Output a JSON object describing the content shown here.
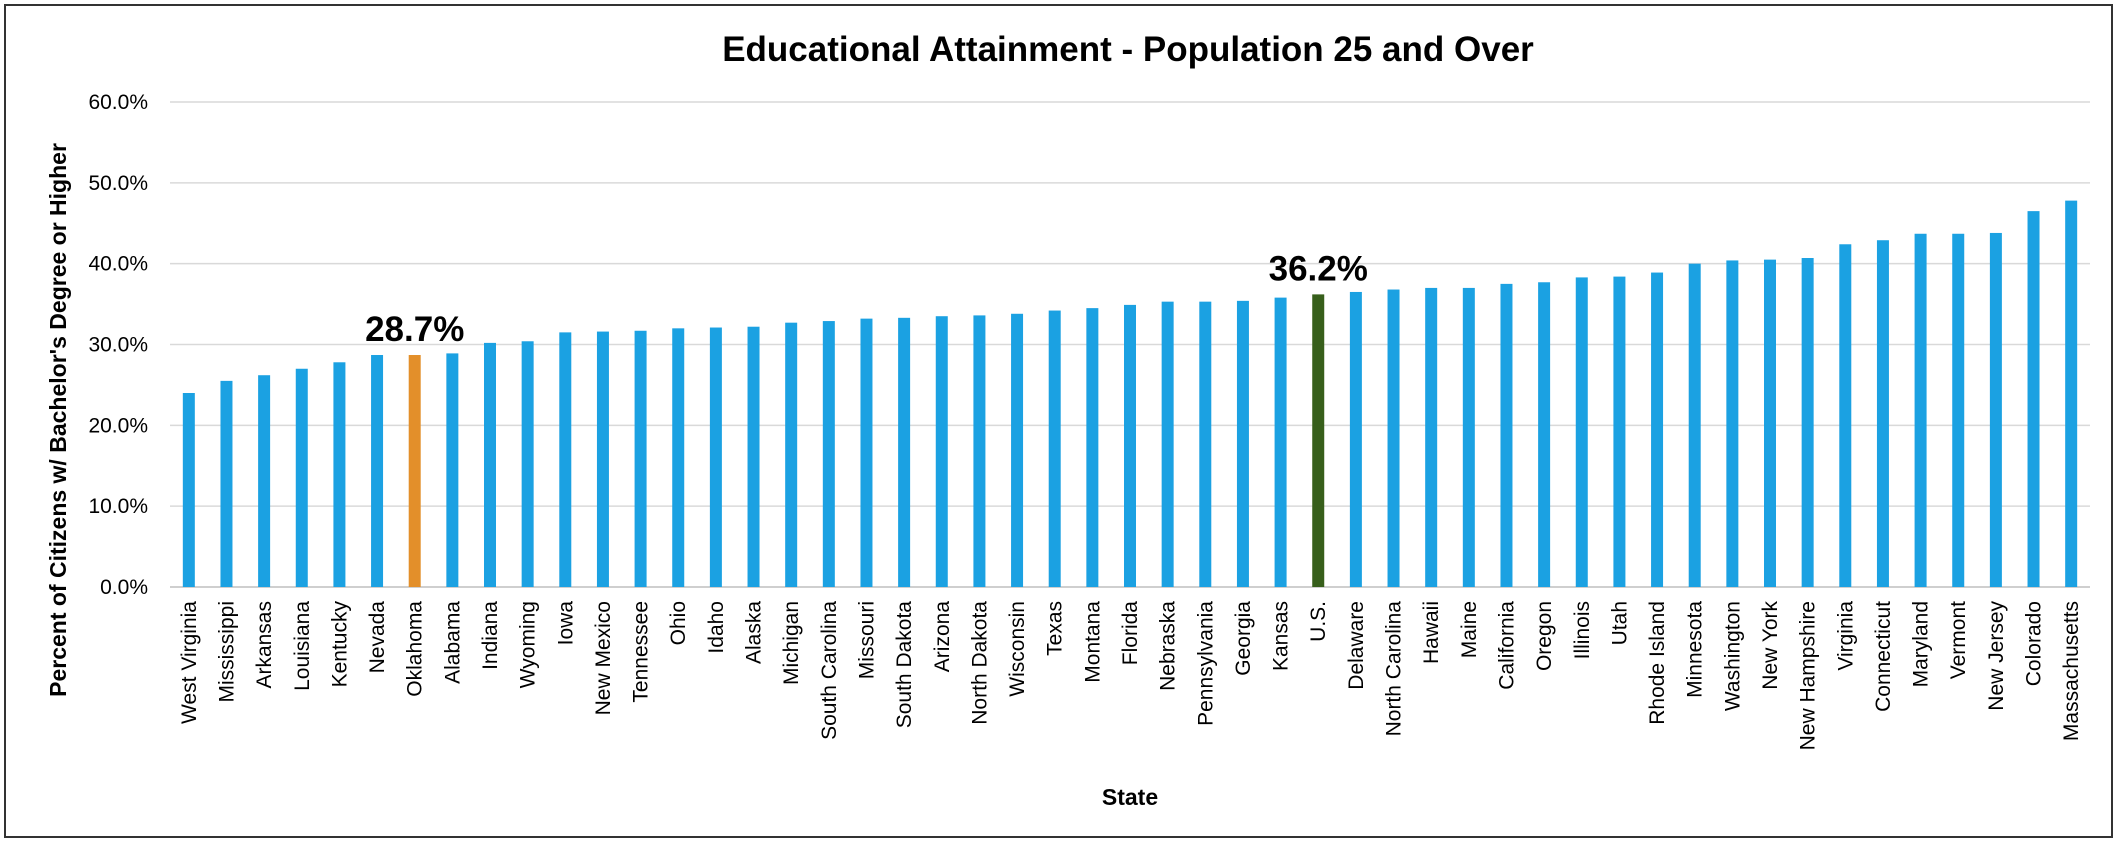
{
  "chart_data": {
    "type": "bar",
    "title": "Educational Attainment - Population 25 and Over",
    "xlabel": "State",
    "ylabel": "Percent of Citizens w/ Bachelor's Degree or Higher",
    "ylim": [
      0,
      60
    ],
    "yticks": [
      "0.0%",
      "10.0%",
      "20.0%",
      "30.0%",
      "40.0%",
      "50.0%",
      "60.0%"
    ],
    "grid": true,
    "legend": "none",
    "colors": {
      "default": "#1BA1E2",
      "Oklahoma": "#E38F2A",
      "U.S.": "#375F1B"
    },
    "categories": [
      "West Virginia",
      "Mississippi",
      "Arkansas",
      "Louisiana",
      "Kentucky",
      "Nevada",
      "Oklahoma",
      "Alabama",
      "Indiana",
      "Wyoming",
      "Iowa",
      "New Mexico",
      "Tennessee",
      "Ohio",
      "Idaho",
      "Alaska",
      "Michigan",
      "South Carolina",
      "Missouri",
      "South Dakota",
      "Arizona",
      "North Dakota",
      "Wisconsin",
      "Texas",
      "Montana",
      "Florida",
      "Nebraska",
      "Pennsylvania",
      "Georgia",
      "Kansas",
      "U.S.",
      "Delaware",
      "North Carolina",
      "Hawaii",
      "Maine",
      "California",
      "Oregon",
      "Illinois",
      "Utah",
      "Rhode Island",
      "Minnesota",
      "Washington",
      "New York",
      "New Hampshire",
      "Virginia",
      "Connecticut",
      "Maryland",
      "Vermont",
      "New Jersey",
      "Colorado",
      "Massachusetts"
    ],
    "values": [
      24.0,
      25.5,
      26.2,
      27.0,
      27.8,
      28.7,
      28.7,
      28.9,
      30.2,
      30.4,
      31.5,
      31.6,
      31.7,
      32.0,
      32.1,
      32.2,
      32.7,
      32.9,
      33.2,
      33.3,
      33.5,
      33.6,
      33.8,
      34.2,
      34.5,
      34.9,
      35.3,
      35.3,
      35.4,
      35.8,
      36.2,
      36.5,
      36.8,
      37.0,
      37.0,
      37.5,
      37.7,
      38.3,
      38.4,
      38.9,
      40.0,
      40.4,
      40.5,
      40.7,
      42.4,
      42.9,
      43.7,
      43.7,
      43.8,
      46.5,
      47.8
    ],
    "annotations": [
      {
        "category": "Oklahoma",
        "label": "28.7%"
      },
      {
        "category": "U.S.",
        "label": "36.2%"
      }
    ]
  }
}
